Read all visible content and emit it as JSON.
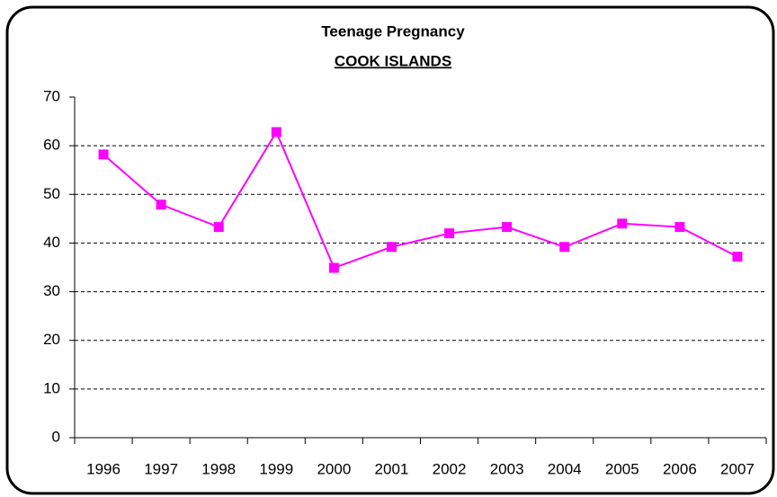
{
  "chart_data": {
    "type": "line",
    "title": "Teenage Pregnancy",
    "subtitle": "COOK ISLANDS",
    "categories": [
      "1996",
      "1997",
      "1998",
      "1999",
      "2000",
      "2001",
      "2002",
      "2003",
      "2004",
      "2005",
      "2006",
      "2007"
    ],
    "values": [
      58.2,
      47.9,
      43.3,
      62.8,
      34.9,
      39.2,
      42.0,
      43.3,
      39.2,
      44.0,
      43.3,
      37.2
    ],
    "color": "#ff00ff",
    "ylim": [
      0,
      70
    ],
    "yticks": [
      0,
      10,
      20,
      30,
      40,
      50,
      60,
      70
    ],
    "grid": true
  }
}
